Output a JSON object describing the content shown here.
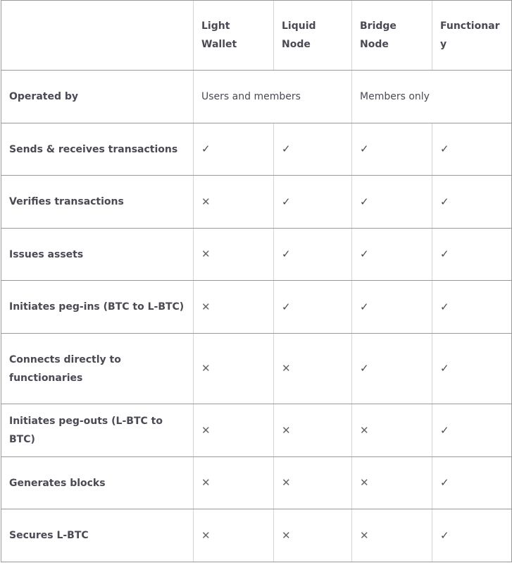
{
  "table": {
    "columns": [
      "Light Wallet",
      "Liquid Node",
      "Bridge Node",
      "Functionary"
    ],
    "operated": {
      "label": "Operated by",
      "cells": [
        "Users and members",
        "Members only"
      ]
    },
    "rows": [
      {
        "label": "Sends & receives transactions",
        "cells": [
          "✓",
          "✓",
          "✓",
          "✓"
        ]
      },
      {
        "label": "Verifies transactions",
        "cells": [
          "✕",
          "✓",
          "✓",
          "✓"
        ]
      },
      {
        "label": "Issues assets",
        "cells": [
          "✕",
          "✓",
          "✓",
          "✓"
        ]
      },
      {
        "label": "Initiates peg-ins (BTC to L-BTC)",
        "cells": [
          "✕",
          "✓",
          "✓",
          "✓"
        ]
      },
      {
        "label": "Connects directly to functionaries",
        "cells": [
          "✕",
          "✕",
          "✓",
          "✓"
        ]
      },
      {
        "label": "Initiates peg-outs (L-BTC to BTC)",
        "cells": [
          "✕",
          "✕",
          "✕",
          "✓"
        ]
      },
      {
        "label": "Generates blocks",
        "cells": [
          "✕",
          "✕",
          "✕",
          "✓"
        ]
      },
      {
        "label": "Secures L-BTC",
        "cells": [
          "✕",
          "✕",
          "✕",
          "✓"
        ]
      }
    ]
  }
}
